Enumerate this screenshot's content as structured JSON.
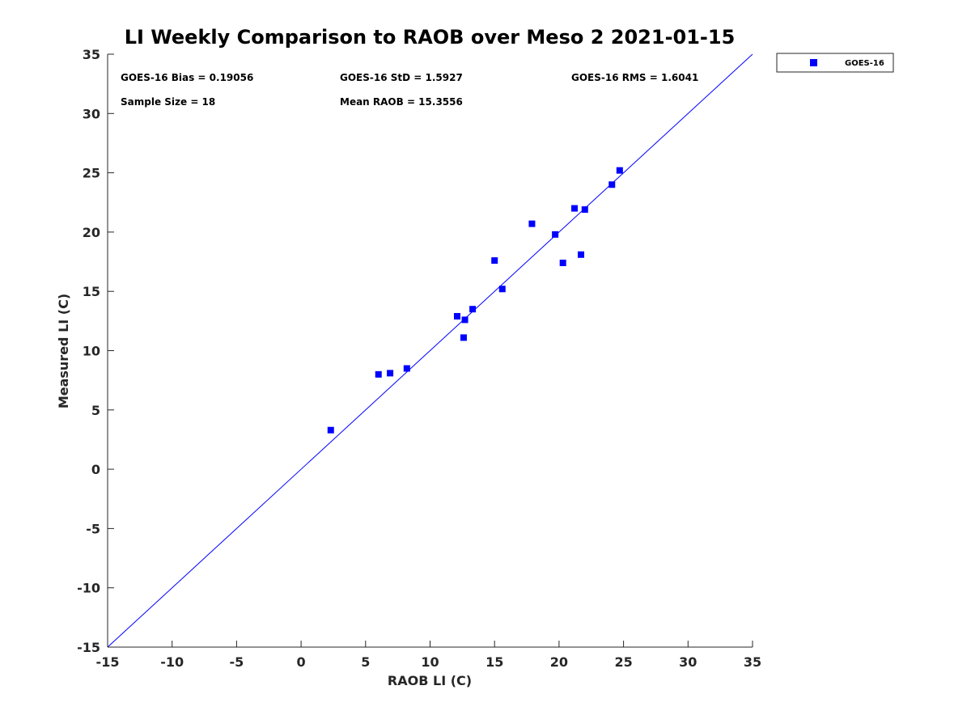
{
  "chart_data": {
    "type": "scatter",
    "title": "LI Weekly Comparison to RAOB over Meso 2 2021-01-15",
    "xlabel": "RAOB LI (C)",
    "ylabel": "Measured LI (C)",
    "xlim": [
      -15,
      35
    ],
    "ylim": [
      -15,
      35
    ],
    "xticks": [
      "-15",
      "-10",
      "-5",
      "0",
      "5",
      "10",
      "15",
      "20",
      "25",
      "30",
      "35"
    ],
    "yticks": [
      "-15",
      "-10",
      "-5",
      "0",
      "5",
      "10",
      "15",
      "20",
      "25",
      "30",
      "35"
    ],
    "grid": false,
    "legend_position": "outside-top-right",
    "reference_line": {
      "type": "one-to-one",
      "from": [
        -15,
        -15
      ],
      "to": [
        35,
        35
      ],
      "color": "#0000ff"
    },
    "series": [
      {
        "name": "GOES-16",
        "marker": "square",
        "color": "#0000ff",
        "points": [
          [
            2.3,
            3.3
          ],
          [
            6.0,
            8.0
          ],
          [
            6.9,
            8.1
          ],
          [
            8.2,
            8.5
          ],
          [
            12.1,
            12.9
          ],
          [
            12.6,
            11.1
          ],
          [
            12.7,
            12.6
          ],
          [
            13.3,
            13.5
          ],
          [
            15.0,
            17.6
          ],
          [
            15.6,
            15.2
          ],
          [
            17.9,
            20.7
          ],
          [
            19.7,
            19.8
          ],
          [
            20.3,
            17.4
          ],
          [
            21.2,
            22.0
          ],
          [
            21.7,
            18.1
          ],
          [
            22.0,
            21.9
          ],
          [
            24.1,
            24.0
          ],
          [
            24.7,
            25.2
          ]
        ]
      }
    ],
    "annotations": {
      "bias": "GOES-16 Bias = 0.19056",
      "std": "GOES-16 StD = 1.5927",
      "rms": "GOES-16 RMS = 1.6041",
      "sample_size": "Sample Size = 18",
      "mean_raob": "Mean RAOB = 15.3556"
    }
  }
}
